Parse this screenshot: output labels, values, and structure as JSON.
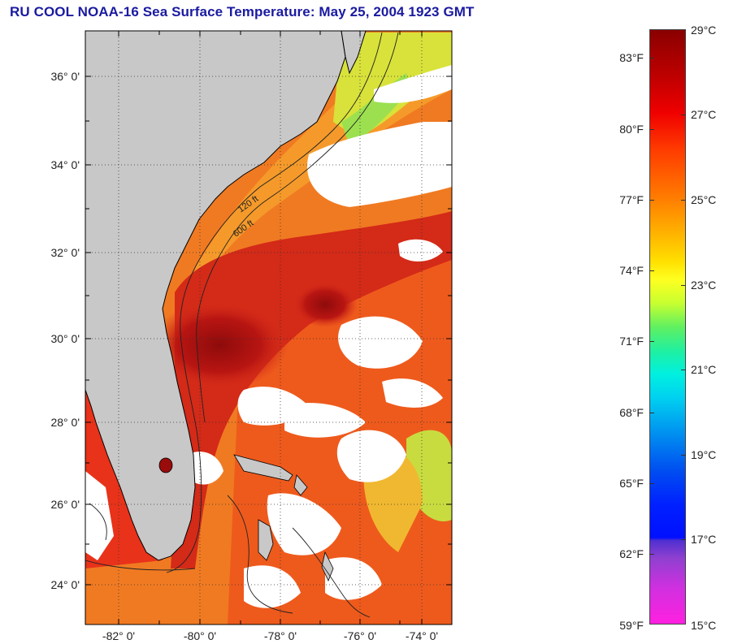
{
  "title": "RU COOL  NOAA-16  Sea Surface Temperature:  May 25, 2004 1923 GMT",
  "map": {
    "lat_labels": [
      "36° 0'",
      "34° 0'",
      "32° 0'",
      "30° 0'",
      "28° 0'",
      "26° 0'",
      "24° 0'"
    ],
    "lon_labels": [
      "-82° 0'",
      "-80° 0'",
      "-78° 0'",
      "-76° 0'",
      "-74° 0'"
    ],
    "contour_labels": [
      "120 ft",
      "600 ft"
    ],
    "colors": {
      "land": "#c8c8c8",
      "cloud": "#ffffff",
      "gulf_stream": "#b01010",
      "shelf_warm": "#f07820"
    }
  },
  "colorbar": {
    "celsius_labels": [
      "29°C",
      "27°C",
      "25°C",
      "23°C",
      "21°C",
      "19°C",
      "17°C",
      "15°C"
    ],
    "fahrenheit_labels": [
      "83°F",
      "80°F",
      "77°F",
      "74°F",
      "71°F",
      "68°F",
      "65°F",
      "62°F",
      "59°F"
    ],
    "range_c": [
      15,
      29
    ],
    "range_f": [
      59,
      84.2
    ]
  }
}
